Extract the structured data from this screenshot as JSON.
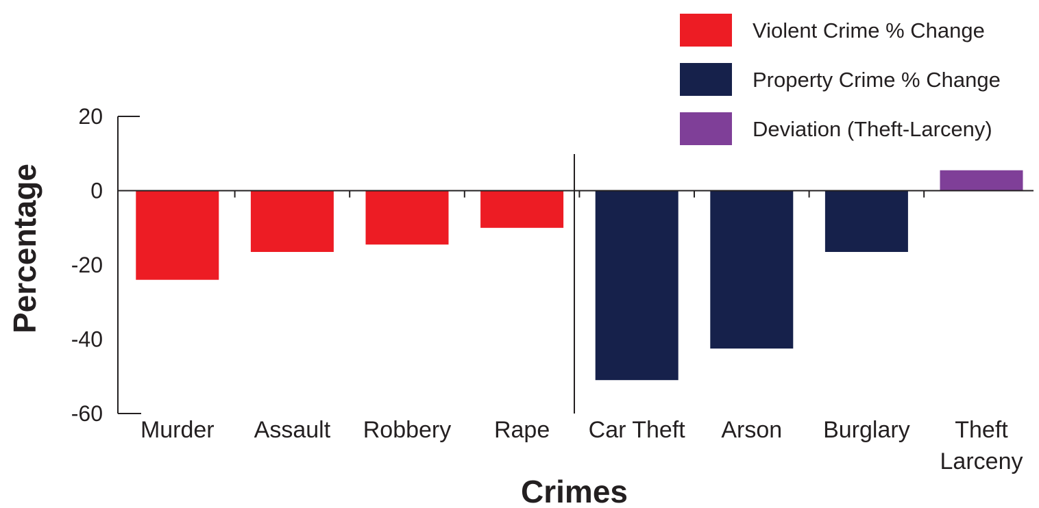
{
  "chart_data": {
    "type": "bar",
    "title": "",
    "xlabel": "Crimes",
    "ylabel": "Percentage",
    "ylim": [
      -60,
      20
    ],
    "yticks": [
      20,
      0,
      -20,
      -40,
      -60
    ],
    "categories": [
      {
        "label_lines": [
          "Murder"
        ],
        "series": "violent",
        "value": -24
      },
      {
        "label_lines": [
          "Assault"
        ],
        "series": "violent",
        "value": -16.5
      },
      {
        "label_lines": [
          "Robbery"
        ],
        "series": "violent",
        "value": -14.5
      },
      {
        "label_lines": [
          "Rape"
        ],
        "series": "violent",
        "value": -10
      },
      {
        "label_lines": [
          "Car Theft"
        ],
        "series": "property",
        "value": -51
      },
      {
        "label_lines": [
          "Arson"
        ],
        "series": "property",
        "value": -42.5
      },
      {
        "label_lines": [
          "Burglary"
        ],
        "series": "property",
        "value": -16.5
      },
      {
        "label_lines": [
          "Theft",
          "Larceny"
        ],
        "series": "deviation",
        "value": 5.5
      }
    ],
    "series": [
      {
        "key": "violent",
        "name": "Violent Crime % Change",
        "color": "#ed1c24"
      },
      {
        "key": "property",
        "name": "Property Crime % Change",
        "color": "#16214b"
      },
      {
        "key": "deviation",
        "name": "Deviation (Theft-Larceny)",
        "color": "#7f3f98"
      }
    ],
    "legend_position": "top-right",
    "grid": false,
    "text_color": "#231f20",
    "deviation_label_color": "#7f3f98"
  }
}
